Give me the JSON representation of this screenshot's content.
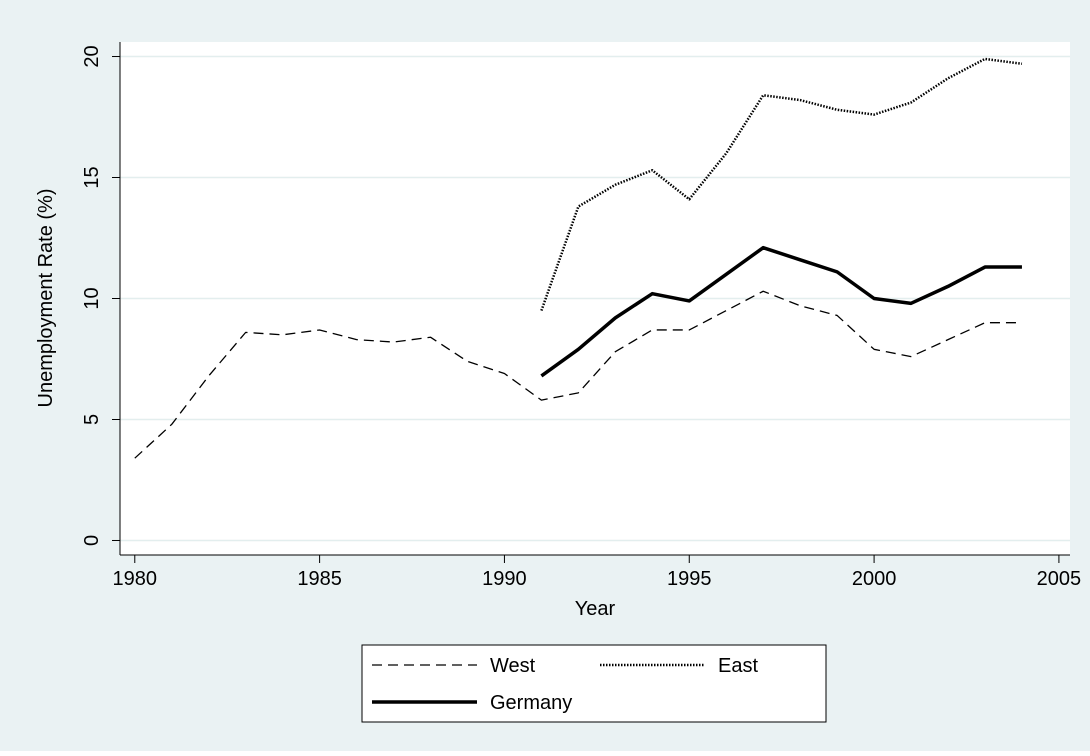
{
  "chart_data": {
    "type": "line",
    "xlabel": "Year",
    "ylabel": "Unemployment Rate (%)",
    "x": [
      1980,
      1981,
      1982,
      1983,
      1984,
      1985,
      1986,
      1987,
      1988,
      1989,
      1990,
      1991,
      1992,
      1993,
      1994,
      1995,
      1996,
      1997,
      1998,
      1999,
      2000,
      2001,
      2002,
      2003,
      2004
    ],
    "series": [
      {
        "name": "West",
        "color": "#000000",
        "dash": "dashed",
        "values": [
          3.4,
          4.8,
          6.8,
          8.6,
          8.5,
          8.7,
          8.3,
          8.2,
          8.4,
          7.4,
          6.9,
          5.8,
          6.1,
          7.8,
          8.7,
          8.7,
          9.5,
          10.3,
          9.7,
          9.3,
          7.9,
          7.6,
          8.3,
          9.0,
          9.0
        ]
      },
      {
        "name": "East",
        "color": "#000000",
        "dash": "dotted",
        "values": [
          null,
          null,
          null,
          null,
          null,
          null,
          null,
          null,
          null,
          null,
          null,
          9.5,
          13.8,
          14.7,
          15.3,
          14.1,
          16.0,
          18.4,
          18.2,
          17.8,
          17.6,
          18.1,
          19.1,
          19.9,
          19.7
        ]
      },
      {
        "name": "Germany",
        "color": "#000000",
        "dash": "solid",
        "values": [
          null,
          null,
          null,
          null,
          null,
          null,
          null,
          null,
          null,
          null,
          null,
          6.8,
          7.9,
          9.2,
          10.2,
          9.9,
          11.0,
          12.1,
          11.6,
          11.1,
          10.0,
          9.8,
          10.5,
          11.3,
          11.3
        ]
      }
    ],
    "xlim": [
      1979.6,
      2005.3
    ],
    "ylim": [
      -0.6,
      20.6
    ],
    "xticks": [
      1980,
      1985,
      1990,
      1995,
      2000,
      2005
    ],
    "yticks": [
      0,
      5,
      10,
      15,
      20
    ],
    "grid": true,
    "legend": "bottom"
  }
}
